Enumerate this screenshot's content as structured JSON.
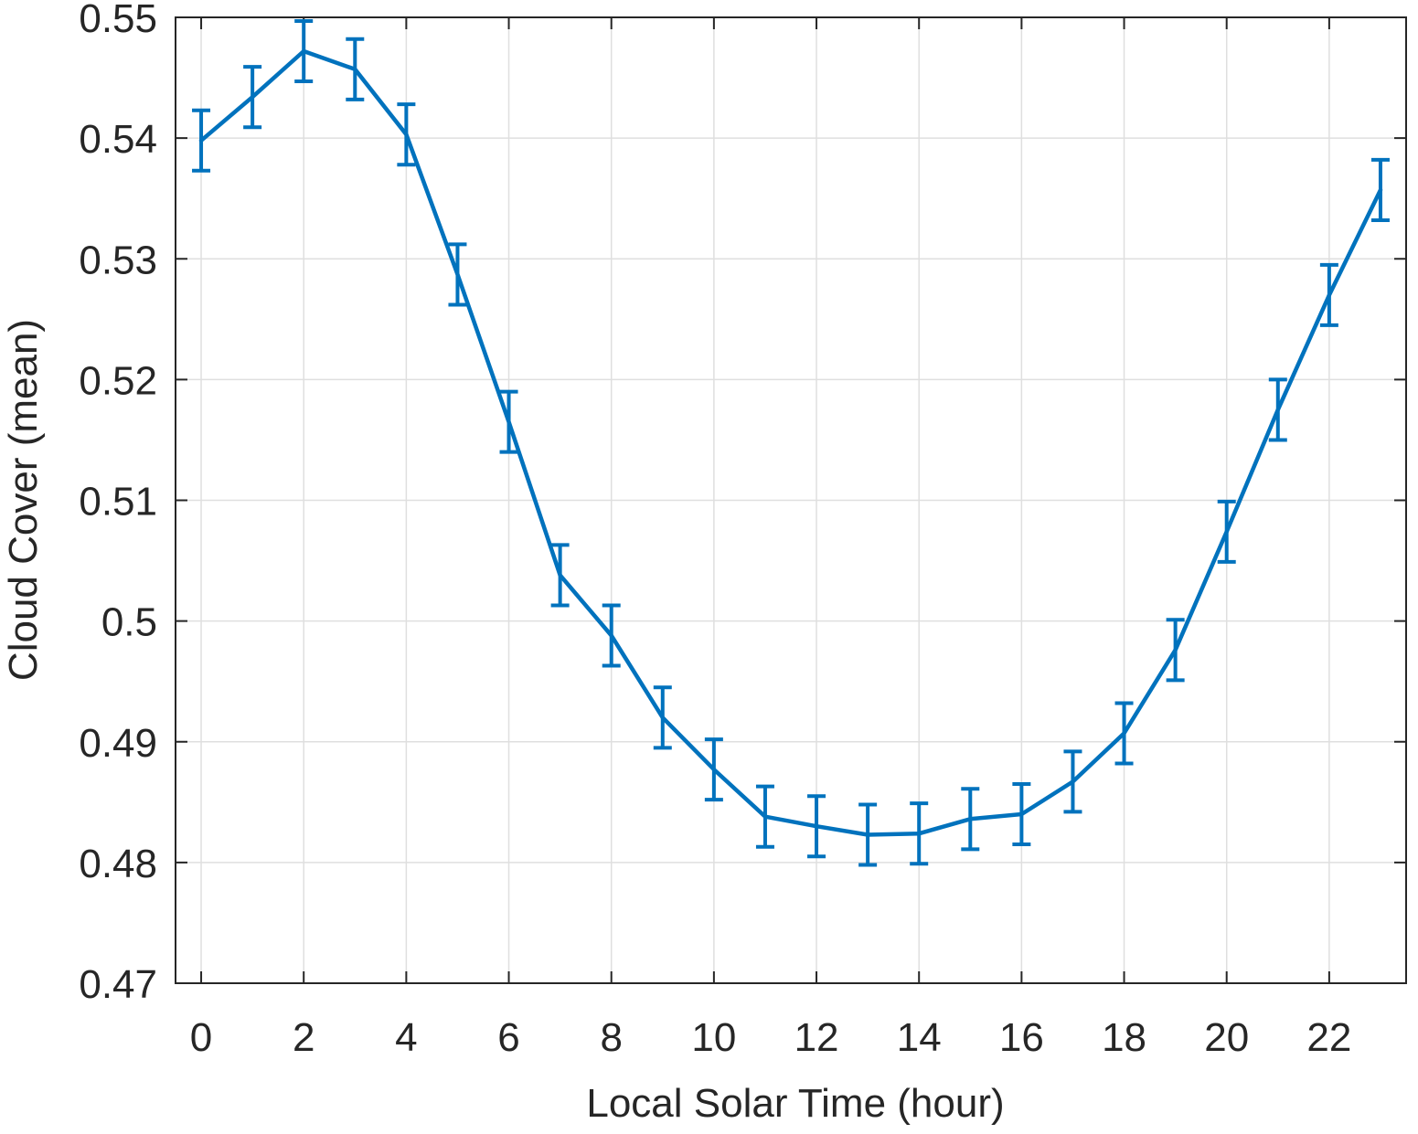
{
  "chart_data": {
    "type": "line",
    "title": "",
    "xlabel": "Local Solar Time (hour)",
    "ylabel": "Cloud Cover (mean)",
    "xlim": [
      -0.5,
      23.5
    ],
    "ylim": [
      0.47,
      0.55
    ],
    "xticks": [
      0,
      2,
      4,
      6,
      8,
      10,
      12,
      14,
      16,
      18,
      20,
      22
    ],
    "xtick_labels": [
      "0",
      "2",
      "4",
      "6",
      "8",
      "10",
      "12",
      "14",
      "16",
      "18",
      "20",
      "22"
    ],
    "yticks": [
      0.47,
      0.48,
      0.49,
      0.5,
      0.51,
      0.52,
      0.53,
      0.54,
      0.55
    ],
    "ytick_labels": [
      "0.47",
      "0.48",
      "0.49",
      "0.5",
      "0.51",
      "0.52",
      "0.53",
      "0.54",
      "0.55"
    ],
    "grid": true,
    "legend": false,
    "series": [
      {
        "color": "#0072BD",
        "x": [
          0,
          1,
          2,
          3,
          4,
          5,
          6,
          7,
          8,
          9,
          10,
          11,
          12,
          13,
          14,
          15,
          16,
          17,
          18,
          19,
          20,
          21,
          22,
          23
        ],
        "y": [
          0.5398,
          0.5434,
          0.5472,
          0.5457,
          0.5403,
          0.5287,
          0.5165,
          0.5038,
          0.4988,
          0.492,
          0.4877,
          0.4838,
          0.483,
          0.4823,
          0.4824,
          0.4836,
          0.484,
          0.4867,
          0.4907,
          0.4976,
          0.5074,
          0.5175,
          0.527,
          0.5357
        ],
        "error": [
          0.0025,
          0.0025,
          0.0025,
          0.0025,
          0.0025,
          0.0025,
          0.0025,
          0.0025,
          0.0025,
          0.0025,
          0.0025,
          0.0025,
          0.0025,
          0.0025,
          0.0025,
          0.0025,
          0.0025,
          0.0025,
          0.0025,
          0.0025,
          0.0025,
          0.0025,
          0.0025,
          0.0025
        ]
      }
    ]
  }
}
